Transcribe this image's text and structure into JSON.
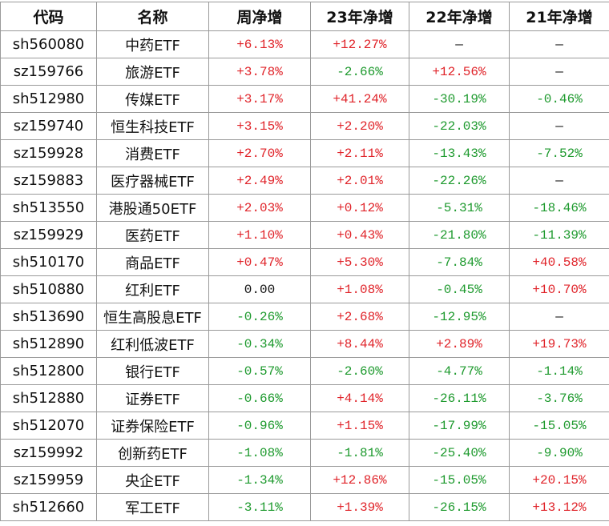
{
  "table": {
    "header": [
      "代码",
      "名称",
      "周净增",
      "23年净增",
      "22年净增",
      "21年净增"
    ],
    "rows": [
      [
        "sh560080",
        "中药ETF",
        "+6.13%",
        "+12.27%",
        "—",
        "—"
      ],
      [
        "sz159766",
        "旅游ETF",
        "+3.78%",
        "-2.66%",
        "+12.56%",
        "—"
      ],
      [
        "sh512980",
        "传媒ETF",
        "+3.17%",
        "+41.24%",
        "-30.19%",
        "-0.46%"
      ],
      [
        "sz159740",
        "恒生科技ETF",
        "+3.15%",
        "+2.20%",
        "-22.03%",
        "—"
      ],
      [
        "sz159928",
        "消费ETF",
        "+2.70%",
        "+2.11%",
        "-13.43%",
        "-7.52%"
      ],
      [
        "sz159883",
        "医疗器械ETF",
        "+2.49%",
        "+2.01%",
        "-22.26%",
        "—"
      ],
      [
        "sh513550",
        "港股通50ETF",
        "+2.03%",
        "+0.12%",
        "-5.31%",
        "-18.46%"
      ],
      [
        "sz159929",
        "医药ETF",
        "+1.10%",
        "+0.43%",
        "-21.80%",
        "-11.39%"
      ],
      [
        "sh510170",
        "商品ETF",
        "+0.47%",
        "+5.30%",
        "-7.84%",
        "+40.58%"
      ],
      [
        "sh510880",
        "红利ETF",
        "0.00",
        "+1.08%",
        "-0.45%",
        "+10.70%"
      ],
      [
        "sh513690",
        "恒生高股息ETF",
        "-0.26%",
        "+2.68%",
        "-12.95%",
        "—"
      ],
      [
        "sh512890",
        "红利低波ETF",
        "-0.34%",
        "+8.44%",
        "+2.89%",
        "+19.73%"
      ],
      [
        "sh512800",
        "银行ETF",
        "-0.57%",
        "-2.60%",
        "-4.77%",
        "-1.14%"
      ],
      [
        "sh512880",
        "证券ETF",
        "-0.66%",
        "+4.14%",
        "-26.11%",
        "-3.76%"
      ],
      [
        "sh512070",
        "证券保险ETF",
        "-0.96%",
        "+1.15%",
        "-17.99%",
        "-15.05%"
      ],
      [
        "sz159992",
        "创新药ETF",
        "-1.08%",
        "-1.81%",
        "-25.40%",
        "-9.90%"
      ],
      [
        "sz159959",
        "央企ETF",
        "-1.34%",
        "+12.86%",
        "-15.05%",
        "+20.15%"
      ],
      [
        "sh512660",
        "军工ETF",
        "-3.11%",
        "+1.39%",
        "-26.15%",
        "+13.12%"
      ]
    ]
  }
}
